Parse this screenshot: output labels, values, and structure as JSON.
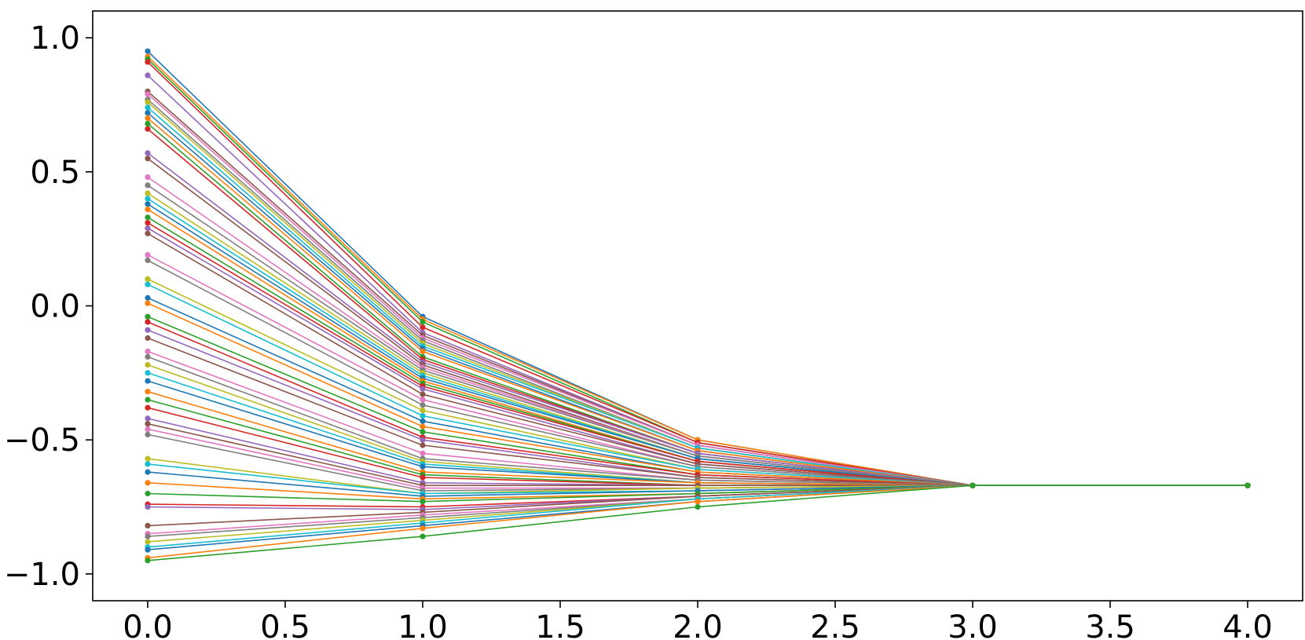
{
  "chart_data": {
    "type": "line",
    "title": "",
    "xlabel": "",
    "ylabel": "",
    "xlim": [
      -0.2,
      4.2
    ],
    "ylim": [
      -1.1,
      1.1
    ],
    "x": [
      0,
      1,
      2,
      3,
      4
    ],
    "x_ticks": [
      0.0,
      0.5,
      1.0,
      1.5,
      2.0,
      2.5,
      3.0,
      3.5,
      4.0
    ],
    "x_tick_labels": [
      "0.0",
      "0.5",
      "1.0",
      "1.5",
      "2.0",
      "2.5",
      "3.0",
      "3.5",
      "4.0"
    ],
    "y_ticks": [
      1.0,
      0.5,
      0.0,
      -0.5,
      -1.0
    ],
    "y_tick_labels": [
      "1.0",
      "0.5",
      "0.0",
      "−0.5",
      "−1.0"
    ],
    "grid": false,
    "legend": "none",
    "markers": true,
    "colors": [
      "#1f77b4",
      "#ff7f0e",
      "#2ca02c",
      "#d62728",
      "#9467bd",
      "#8c564b",
      "#e377c2",
      "#7f7f7f",
      "#bcbd22",
      "#17becf"
    ],
    "series": [
      {
        "values": [
          0.95,
          -0.04,
          -0.5,
          -0.67,
          -0.67
        ]
      },
      {
        "values": [
          0.93,
          -0.05,
          -0.5,
          -0.67,
          -0.67
        ]
      },
      {
        "values": [
          0.92,
          -0.06,
          -0.51,
          -0.67,
          -0.67
        ]
      },
      {
        "values": [
          0.91,
          -0.08,
          -0.51,
          -0.67,
          -0.67
        ]
      },
      {
        "values": [
          0.86,
          -0.1,
          -0.52,
          -0.67,
          -0.67
        ]
      },
      {
        "values": [
          0.8,
          -0.11,
          -0.52,
          -0.67,
          -0.67
        ]
      },
      {
        "values": [
          0.79,
          -0.12,
          -0.52,
          -0.67,
          -0.67
        ]
      },
      {
        "values": [
          0.77,
          -0.13,
          -0.53,
          -0.67,
          -0.67
        ]
      },
      {
        "values": [
          0.76,
          -0.14,
          -0.53,
          -0.67,
          -0.67
        ]
      },
      {
        "values": [
          0.74,
          -0.15,
          -0.53,
          -0.67,
          -0.67
        ]
      },
      {
        "values": [
          0.72,
          -0.16,
          -0.54,
          -0.67,
          -0.67
        ]
      },
      {
        "values": [
          0.7,
          -0.17,
          -0.54,
          -0.67,
          -0.67
        ]
      },
      {
        "values": [
          0.68,
          -0.19,
          -0.55,
          -0.67,
          -0.67
        ]
      },
      {
        "values": [
          0.66,
          -0.2,
          -0.55,
          -0.67,
          -0.67
        ]
      },
      {
        "values": [
          0.57,
          -0.21,
          -0.55,
          -0.67,
          -0.67
        ]
      },
      {
        "values": [
          0.55,
          -0.22,
          -0.56,
          -0.67,
          -0.67
        ]
      },
      {
        "values": [
          0.48,
          -0.23,
          -0.56,
          -0.67,
          -0.67
        ]
      },
      {
        "values": [
          0.45,
          -0.24,
          -0.56,
          -0.67,
          -0.67
        ]
      },
      {
        "values": [
          0.42,
          -0.25,
          -0.57,
          -0.67,
          -0.67
        ]
      },
      {
        "values": [
          0.4,
          -0.26,
          -0.57,
          -0.67,
          -0.67
        ]
      },
      {
        "values": [
          0.38,
          -0.27,
          -0.57,
          -0.67,
          -0.67
        ]
      },
      {
        "values": [
          0.36,
          -0.28,
          -0.58,
          -0.67,
          -0.67
        ]
      },
      {
        "values": [
          0.33,
          -0.29,
          -0.58,
          -0.67,
          -0.67
        ]
      },
      {
        "values": [
          0.31,
          -0.3,
          -0.58,
          -0.67,
          -0.67
        ]
      },
      {
        "values": [
          0.29,
          -0.31,
          -0.59,
          -0.67,
          -0.67
        ]
      },
      {
        "values": [
          0.27,
          -0.33,
          -0.59,
          -0.67,
          -0.67
        ]
      },
      {
        "values": [
          0.19,
          -0.35,
          -0.6,
          -0.67,
          -0.67
        ]
      },
      {
        "values": [
          0.17,
          -0.37,
          -0.6,
          -0.67,
          -0.67
        ]
      },
      {
        "values": [
          0.1,
          -0.39,
          -0.61,
          -0.67,
          -0.67
        ]
      },
      {
        "values": [
          0.08,
          -0.41,
          -0.61,
          -0.67,
          -0.67
        ]
      },
      {
        "values": [
          0.03,
          -0.43,
          -0.62,
          -0.67,
          -0.67
        ]
      },
      {
        "values": [
          0.01,
          -0.45,
          -0.62,
          -0.67,
          -0.67
        ]
      },
      {
        "values": [
          -0.04,
          -0.47,
          -0.63,
          -0.67,
          -0.67
        ]
      },
      {
        "values": [
          -0.06,
          -0.49,
          -0.63,
          -0.67,
          -0.67
        ]
      },
      {
        "values": [
          -0.09,
          -0.5,
          -0.64,
          -0.67,
          -0.67
        ]
      },
      {
        "values": [
          -0.12,
          -0.52,
          -0.64,
          -0.67,
          -0.67
        ]
      },
      {
        "values": [
          -0.17,
          -0.55,
          -0.65,
          -0.67,
          -0.67
        ]
      },
      {
        "values": [
          -0.19,
          -0.57,
          -0.65,
          -0.67,
          -0.67
        ]
      },
      {
        "values": [
          -0.22,
          -0.58,
          -0.66,
          -0.67,
          -0.67
        ]
      },
      {
        "values": [
          -0.25,
          -0.59,
          -0.66,
          -0.67,
          -0.67
        ]
      },
      {
        "values": [
          -0.28,
          -0.6,
          -0.66,
          -0.67,
          -0.67
        ]
      },
      {
        "values": [
          -0.32,
          -0.62,
          -0.66,
          -0.67,
          -0.67
        ]
      },
      {
        "values": [
          -0.35,
          -0.63,
          -0.67,
          -0.67,
          -0.67
        ]
      },
      {
        "values": [
          -0.38,
          -0.64,
          -0.67,
          -0.67,
          -0.67
        ]
      },
      {
        "values": [
          -0.42,
          -0.66,
          -0.67,
          -0.67,
          -0.67
        ]
      },
      {
        "values": [
          -0.44,
          -0.67,
          -0.67,
          -0.67,
          -0.67
        ]
      },
      {
        "values": [
          -0.46,
          -0.68,
          -0.68,
          -0.67,
          -0.67
        ]
      },
      {
        "values": [
          -0.48,
          -0.69,
          -0.68,
          -0.67,
          -0.67
        ]
      },
      {
        "values": [
          -0.57,
          -0.7,
          -0.68,
          -0.67,
          -0.67
        ]
      },
      {
        "values": [
          -0.59,
          -0.7,
          -0.69,
          -0.67,
          -0.67
        ]
      },
      {
        "values": [
          -0.62,
          -0.71,
          -0.69,
          -0.67,
          -0.67
        ]
      },
      {
        "values": [
          -0.66,
          -0.72,
          -0.7,
          -0.67,
          -0.67
        ]
      },
      {
        "values": [
          -0.7,
          -0.73,
          -0.7,
          -0.67,
          -0.67
        ]
      },
      {
        "values": [
          -0.74,
          -0.75,
          -0.71,
          -0.67,
          -0.67
        ]
      },
      {
        "values": [
          -0.75,
          -0.76,
          -0.71,
          -0.67,
          -0.67
        ]
      },
      {
        "values": [
          -0.82,
          -0.77,
          -0.71,
          -0.67,
          -0.67
        ]
      },
      {
        "values": [
          -0.85,
          -0.78,
          -0.72,
          -0.67,
          -0.67
        ]
      },
      {
        "values": [
          -0.86,
          -0.79,
          -0.72,
          -0.67,
          -0.67
        ]
      },
      {
        "values": [
          -0.88,
          -0.8,
          -0.72,
          -0.67,
          -0.67
        ]
      },
      {
        "values": [
          -0.9,
          -0.81,
          -0.72,
          -0.67,
          -0.67
        ]
      },
      {
        "values": [
          -0.91,
          -0.82,
          -0.73,
          -0.67,
          -0.67
        ]
      },
      {
        "values": [
          -0.94,
          -0.83,
          -0.73,
          -0.67,
          -0.67
        ]
      },
      {
        "values": [
          -0.95,
          -0.86,
          -0.75,
          -0.67,
          -0.67
        ]
      }
    ]
  }
}
